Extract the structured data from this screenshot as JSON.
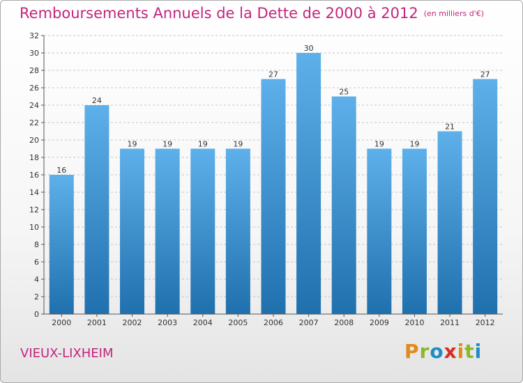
{
  "header": {
    "title": "Remboursements Annuels de la Dette de 2000 à 2012",
    "unit": "(en milliers d'€)"
  },
  "footer": {
    "commune": "VIEUX-LIXHEIM",
    "logo_text": "Proxiti",
    "logo_colors": [
      "#e2891b",
      "#8bb82a",
      "#1e8cc6",
      "#d82b22",
      "#e2891b",
      "#8bb82a",
      "#1e8cc6"
    ]
  },
  "colors": {
    "bar_top": "#5eb0ea",
    "bar_bottom": "#1f70ad",
    "accent": "#c2257c",
    "grid": "#c4c4c4"
  },
  "chart_data": {
    "type": "bar",
    "title": "Remboursements Annuels de la Dette de 2000 à 2012",
    "subtitle": "(en milliers d'€)",
    "xlabel": "",
    "ylabel": "",
    "categories": [
      "2000",
      "2001",
      "2002",
      "2003",
      "2004",
      "2005",
      "2006",
      "2007",
      "2008",
      "2009",
      "2010",
      "2011",
      "2012"
    ],
    "values": [
      16,
      24,
      19,
      19,
      19,
      19,
      27,
      30,
      25,
      19,
      19,
      21,
      27
    ],
    "data_labels": [
      "16",
      "24",
      "19",
      "19",
      "19",
      "19",
      "27",
      "30",
      "25",
      "19",
      "19",
      "21",
      "27"
    ],
    "ylim": [
      0,
      32
    ],
    "yticks": [
      0,
      2,
      4,
      6,
      8,
      10,
      12,
      14,
      16,
      18,
      20,
      22,
      24,
      26,
      28,
      30,
      32
    ],
    "grid": "horizontal dashed",
    "legend": "none"
  }
}
